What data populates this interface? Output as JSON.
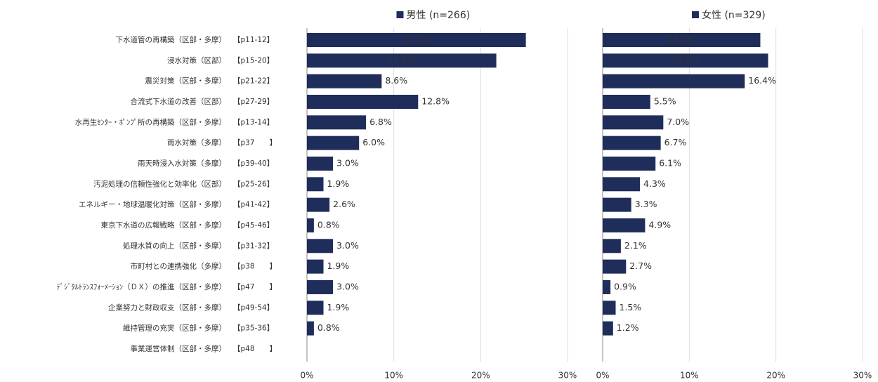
{
  "chart_data": {
    "type": "bar",
    "orientation": "horizontal",
    "categories": [
      "下水道管の再構築（区部・多摩）",
      "浸水対策（区部）",
      "震災対策（区部・多摩）",
      "合流式下水道の改善（区部）",
      "水再生ｾﾝﾀｰ・ﾎﾟﾝﾌﾟ所の再構築（区部・多摩）",
      "雨水対策（多摩）",
      "雨天時浸入水対策（多摩）",
      "汚泥処理の信頼性強化と効率化（区部）",
      "エネルギー・地球温暖化対策（区部・多摩）",
      "東京下水道の広報戦略（区部・多摩）",
      "処理水質の向上（区部・多摩）",
      "市町村との連携強化（多摩）",
      "ﾃﾞｼﾞﾀﾙﾄﾗﾝｽﾌｫｰﾒｰｼｮﾝ（ＤＸ）の推進（区部・多摩）",
      "企業努力と財政収支（区部・多摩）",
      "維持管理の充実（区部・多摩）",
      "事業運営体制（区部・多摩）"
    ],
    "page_refs": [
      "【p11-12】",
      "【p15-20】",
      "【p21-22】",
      "【p27-29】",
      "【p13-14】",
      "【p37　　】",
      "【p39-40】",
      "【p25-26】",
      "【p41-42】",
      "【p45-46】",
      "【p31-32】",
      "【p38　　】",
      "【p47　　】",
      "【p49-54】",
      "【p35-36】",
      "【p48　　】"
    ],
    "series": [
      {
        "name": "男性 (n=266)",
        "color": "#1f2d5a",
        "values": [
          25.2,
          21.8,
          8.6,
          12.8,
          6.8,
          6.0,
          3.0,
          1.9,
          2.6,
          0.8,
          3.0,
          1.9,
          3.0,
          1.9,
          0.8,
          null
        ],
        "value_labels": [
          "25.2%",
          "21.8%",
          "8.6%",
          "12.8%",
          "6.8%",
          "6.0%",
          "3.0%",
          "1.9%",
          "2.6%",
          "0.8%",
          "3.0%",
          "1.9%",
          "3.0%",
          "1.9%",
          "0.8%",
          null
        ]
      },
      {
        "name": "女性 (n=329)",
        "color": "#1f2d5a",
        "values": [
          18.2,
          19.1,
          16.4,
          5.5,
          7.0,
          6.7,
          6.1,
          4.3,
          3.3,
          4.9,
          2.1,
          2.7,
          0.9,
          1.5,
          1.2,
          null
        ],
        "value_labels": [
          "18.2%",
          "19.1%",
          "16.4%",
          "5.5%",
          "7.0%",
          "6.7%",
          "6.1%",
          "4.3%",
          "3.3%",
          "4.9%",
          "2.1%",
          "2.7%",
          "0.9%",
          "1.5%",
          "1.2%",
          null
        ]
      }
    ],
    "xlim": [
      0,
      30
    ],
    "xticks": [
      {
        "value": 0,
        "label": "0%"
      },
      {
        "value": 10,
        "label": "10%"
      },
      {
        "value": 20,
        "label": "20%"
      },
      {
        "value": 30,
        "label": "30%"
      }
    ],
    "grid": true
  }
}
